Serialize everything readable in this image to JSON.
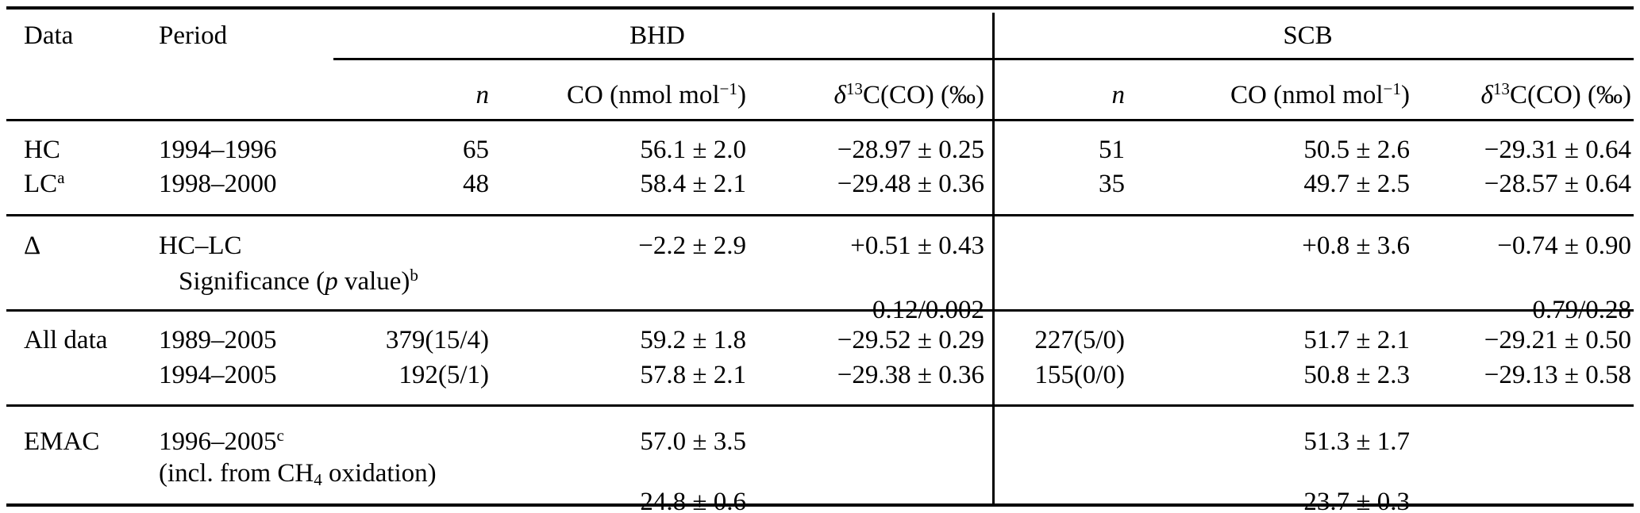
{
  "table": {
    "header": {
      "data": "Data",
      "period": "Period",
      "group_bhd": "BHD",
      "group_scb": "SCB",
      "n": "n",
      "co": {
        "pre": "CO (nmol mol",
        "sup": "−1",
        "post": ")"
      },
      "d13c": {
        "delta": "δ",
        "sup": "13",
        "post": "C(CO) (‰)"
      }
    },
    "sections": [
      {
        "rows": [
          {
            "data": "HC",
            "period": "1994–1996",
            "bhd_n": "65",
            "bhd_co": "56.1 ± 2.0",
            "bhd_d13c": "−28.97 ± 0.25",
            "scb_n": "51",
            "scb_co": "50.5 ± 2.6",
            "scb_d13c": "−29.31 ± 0.64"
          },
          {
            "data": "LC",
            "data_sup": "a",
            "period": "1998–2000",
            "bhd_n": "48",
            "bhd_co": "58.4 ± 2.1",
            "bhd_d13c": "−29.48 ± 0.36",
            "scb_n": "35",
            "scb_co": "49.7 ± 2.5",
            "scb_d13c": "−28.57 ± 0.64"
          }
        ]
      },
      {
        "rows": [
          {
            "data": "Δ",
            "period": "HC–LC",
            "bhd_co": "−2.2 ± 2.9",
            "bhd_d13c": "+0.51 ± 0.43",
            "scb_co": "+0.8 ± 3.6",
            "scb_d13c": "−0.74 ± 0.90"
          },
          {
            "sig_pre": "Significance (",
            "sig_p": "p",
            "sig_post": " value)",
            "sig_sup": "b",
            "bhd_d13c": "0.12/0.002",
            "scb_d13c": "0.79/0.28"
          }
        ]
      },
      {
        "rows": [
          {
            "data": "All data",
            "period": "1989–2005",
            "bhd_n": "379(15/4)",
            "bhd_co": "59.2 ± 1.8",
            "bhd_d13c": "−29.52 ± 0.29",
            "scb_n": "227(5/0)",
            "scb_co": "51.7 ± 2.1",
            "scb_d13c": "−29.21 ± 0.50"
          },
          {
            "period": "1994–2005",
            "bhd_n": "192(5/1)",
            "bhd_co": "57.8 ± 2.1",
            "bhd_d13c": "−29.38 ± 0.36",
            "scb_n": "155(0/0)",
            "scb_co": "50.8 ± 2.3",
            "scb_d13c": "−29.13 ± 0.58"
          }
        ]
      },
      {
        "rows": [
          {
            "data": "EMAC",
            "period": "1996–2005",
            "period_sup": "c",
            "bhd_co": "57.0 ± 3.5",
            "scb_co": "51.3 ± 1.7"
          },
          {
            "incl_pre": "(incl. from CH",
            "incl_sub": "4",
            "incl_post": " oxidation)",
            "bhd_co": "24.8 ± 0.6",
            "scb_co": "23.7 ± 0.3"
          }
        ]
      }
    ]
  }
}
